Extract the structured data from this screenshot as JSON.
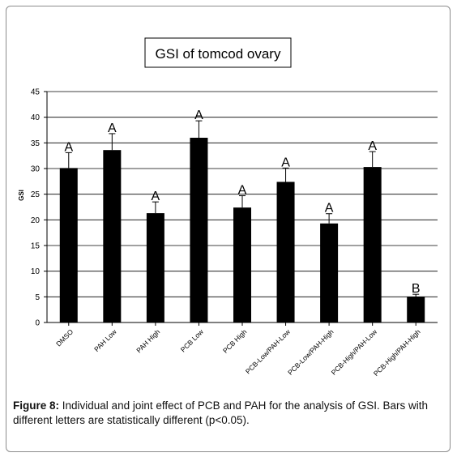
{
  "chart_data": {
    "type": "bar",
    "title": "GSI of tomcod ovary",
    "ylabel": "GSI",
    "xlabel": "",
    "ylim": [
      0,
      45
    ],
    "yticks": [
      0,
      5,
      10,
      15,
      20,
      25,
      30,
      35,
      40,
      45
    ],
    "grid": true,
    "categories": [
      "DMSO",
      "PAH Low",
      "PAH High",
      "PCB Low",
      "PCB High",
      "PCB-Low/PAH-Low",
      "PCB-Low/PAH-High",
      "PCB-High/PAH-Low",
      "PCB-High/PAH-High"
    ],
    "values": [
      30.1,
      33.6,
      21.3,
      36.0,
      22.4,
      27.4,
      19.3,
      30.3,
      5.0
    ],
    "error": [
      3.0,
      3.2,
      2.2,
      3.3,
      2.3,
      2.7,
      1.9,
      3.0,
      0.5
    ],
    "letters": [
      "A",
      "A",
      "A",
      "A",
      "A",
      "A",
      "A",
      "A",
      "B"
    ],
    "colors": {
      "bar": "#000000",
      "grid": "#000000",
      "background": "#ffffff"
    }
  },
  "caption": {
    "label": "Figure 8:",
    "text": " Individual and joint effect of PCB and PAH for the analysis of GSI. Bars with different letters are statistically different (p<0.05)."
  }
}
